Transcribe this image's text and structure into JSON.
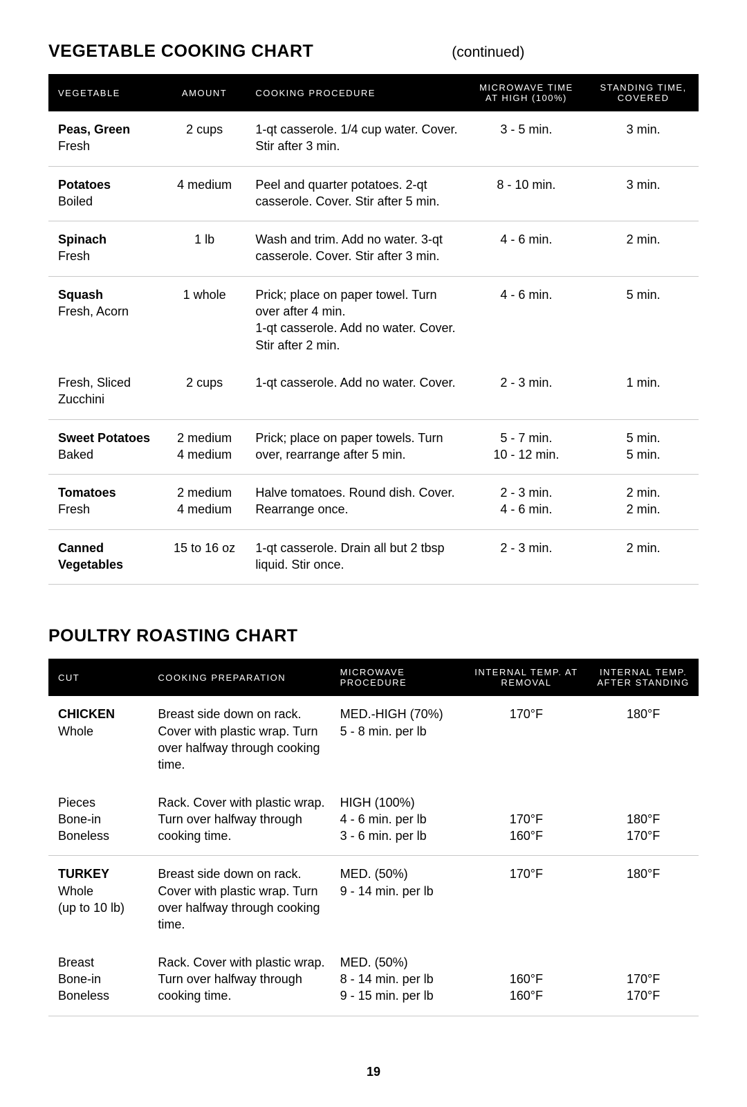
{
  "page_number": "19",
  "colors": {
    "background": "#ffffff",
    "text": "#000000",
    "header_bg": "#000000",
    "header_text": "#ffffff",
    "row_border": "#c8c8c8"
  },
  "typography": {
    "title_fontsize_pt": 19,
    "body_fontsize_pt": 14,
    "header_fontsize_pt": 10,
    "font_family": "Arial"
  },
  "veg_chart": {
    "title": "VEGETABLE COOKING CHART",
    "continued_label": "(continued)",
    "columns": [
      "VEGETABLE",
      "AMOUNT",
      "COOKING PROCEDURE",
      "MICROWAVE TIME\nAT HIGH (100%)",
      "STANDING TIME,\nCOVERED"
    ],
    "column_widths_pct": [
      17,
      14,
      33,
      19,
      17
    ],
    "column_align": [
      "left",
      "center",
      "left",
      "center",
      "center"
    ],
    "rows": [
      {
        "header": "Peas, Green",
        "lines": [
          {
            "veg": "Fresh",
            "amount": "2 cups",
            "procedure": "1-qt casserole. 1/4 cup water. Cover. Stir after 3 min.",
            "time": "3 - 5 min.",
            "stand": "3 min."
          }
        ]
      },
      {
        "header": "Potatoes",
        "lines": [
          {
            "veg": "Boiled",
            "amount": "4 medium",
            "procedure": "Peel and quarter potatoes. 2-qt casserole. Cover. Stir after 5 min.",
            "time": "8 - 10 min.",
            "stand": "3 min."
          }
        ]
      },
      {
        "header": "Spinach",
        "lines": [
          {
            "veg": "Fresh",
            "amount": "1 lb",
            "procedure": "Wash and trim. Add no water. 3-qt casserole. Cover. Stir after 3 min.",
            "time": "4 - 6 min.",
            "stand": "2 min."
          }
        ]
      },
      {
        "header": "Squash",
        "lines": [
          {
            "veg": "Fresh, Acorn",
            "amount": "1 whole",
            "procedure": "Prick; place on paper towel. Turn over after 4 min.\n1-qt casserole. Add no water. Cover. Stir after 2 min.",
            "time": "4 - 6 min.",
            "stand": "5 min."
          },
          {
            "veg": "Fresh, Sliced Zucchini",
            "amount": "2 cups",
            "procedure": "1-qt casserole. Add no water. Cover.",
            "time": "2 - 3 min.",
            "stand": "1 min."
          }
        ]
      },
      {
        "header": "Sweet Potatoes",
        "lines": [
          {
            "veg": "Baked",
            "amount": "2 medium\n4 medium",
            "procedure": "Prick; place on paper towels. Turn over, rearrange after 5 min.",
            "time": "5 - 7 min.\n10 - 12 min.",
            "stand": "5 min.\n5 min."
          }
        ]
      },
      {
        "header": "Tomatoes",
        "lines": [
          {
            "veg": "Fresh",
            "amount": "2 medium\n4 medium",
            "procedure": "Halve tomatoes. Round dish. Cover. Rearrange once.",
            "time": "2 - 3 min.\n4 - 6 min.",
            "stand": "2 min.\n2 min."
          }
        ]
      },
      {
        "header": "Canned Vegetables",
        "header_only": true,
        "lines": [
          {
            "veg": "",
            "amount": "15 to 16 oz",
            "procedure": "1-qt casserole. Drain all but 2 tbsp liquid. Stir once.",
            "time": "2 - 3  min.",
            "stand": "2 min."
          }
        ]
      }
    ]
  },
  "poultry_chart": {
    "title": "POULTRY ROASTING CHART",
    "columns": [
      "CUT",
      "COOKING PREPARATION",
      "MICROWAVE\nPROCEDURE",
      "INTERNAL TEMP. AT\nREMOVAL",
      "INTERNAL TEMP.\nAFTER STANDING"
    ],
    "column_widths_pct": [
      16,
      28,
      20,
      19,
      17
    ],
    "column_align": [
      "left",
      "left",
      "left",
      "center",
      "center"
    ],
    "rows": [
      {
        "header": "CHICKEN",
        "lines": [
          {
            "cut": "Whole",
            "prep": "Breast side down on rack. Cover with plastic wrap. Turn over halfway through cooking time.",
            "proc": "MED.-HIGH (70%)\n5 - 8 min. per lb",
            "remove": "170°F",
            "after": "180°F"
          },
          {
            "cut": "Pieces\nBone-in\nBoneless",
            "prep": "Rack. Cover with plastic wrap. Turn over halfway through cooking time.",
            "proc": "HIGH (100%)\n4 - 6 min. per lb\n3 - 6 min. per lb",
            "remove": "\n170°F\n160°F",
            "after": "\n180°F\n170°F"
          }
        ]
      },
      {
        "header": "TURKEY",
        "lines": [
          {
            "cut": "Whole\n(up to 10 lb)",
            "prep": "Breast side down on rack. Cover with plastic wrap. Turn over halfway through cooking time.",
            "proc": "MED. (50%)\n9 - 14 min. per lb",
            "remove": "170°F",
            "after": "180°F"
          },
          {
            "cut": "Breast\nBone-in\nBoneless",
            "prep": "Rack. Cover with plastic wrap. Turn over halfway through cooking time.",
            "proc": "MED. (50%)\n8 - 14 min. per lb\n9 - 15 min. per lb",
            "remove": "\n160°F\n160°F",
            "after": "\n170°F\n170°F"
          }
        ]
      }
    ]
  }
}
